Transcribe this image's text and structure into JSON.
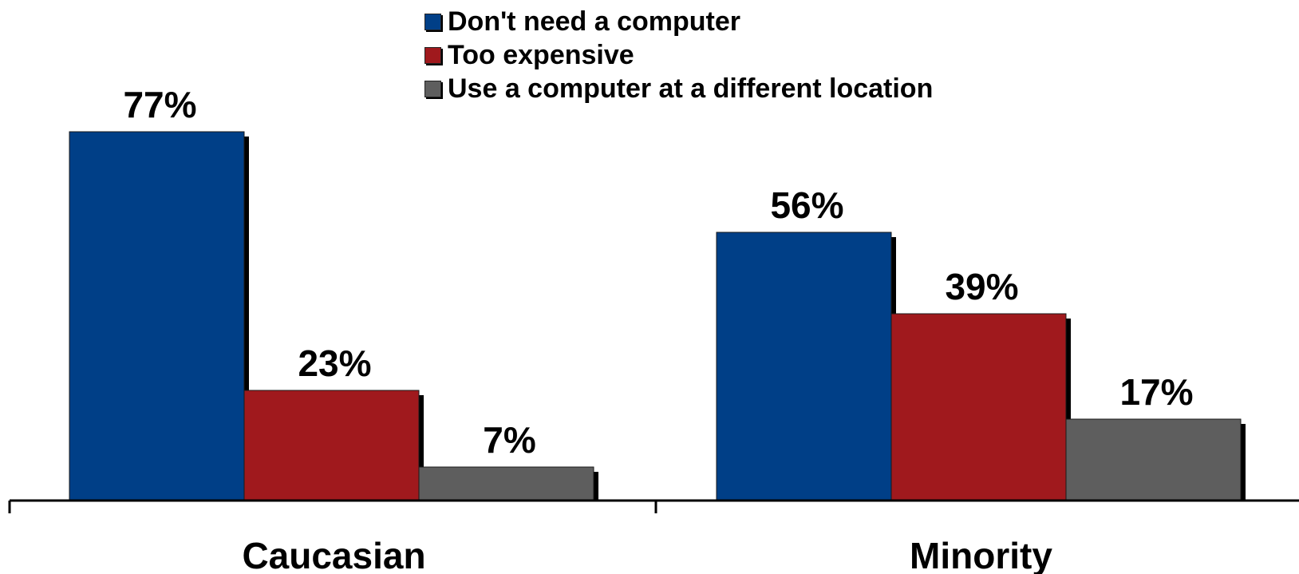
{
  "chart_data": {
    "type": "bar",
    "categories": [
      "Caucasian",
      "Minority"
    ],
    "series": [
      {
        "name": "Don't need a computer",
        "color": "#003f87",
        "values": [
          77,
          56
        ],
        "labels": [
          "77%",
          "56%"
        ]
      },
      {
        "name": "Too expensive",
        "color": "#a0191d",
        "values": [
          23,
          39
        ],
        "labels": [
          "23%",
          "39%"
        ]
      },
      {
        "name": "Use a computer at a different location",
        "color": "#5e5e5e",
        "values": [
          7,
          17
        ],
        "labels": [
          "7%",
          "17%"
        ]
      }
    ],
    "ylim": [
      0,
      100
    ],
    "grid": false,
    "legend_position": "top-center",
    "value_unit": "%"
  }
}
